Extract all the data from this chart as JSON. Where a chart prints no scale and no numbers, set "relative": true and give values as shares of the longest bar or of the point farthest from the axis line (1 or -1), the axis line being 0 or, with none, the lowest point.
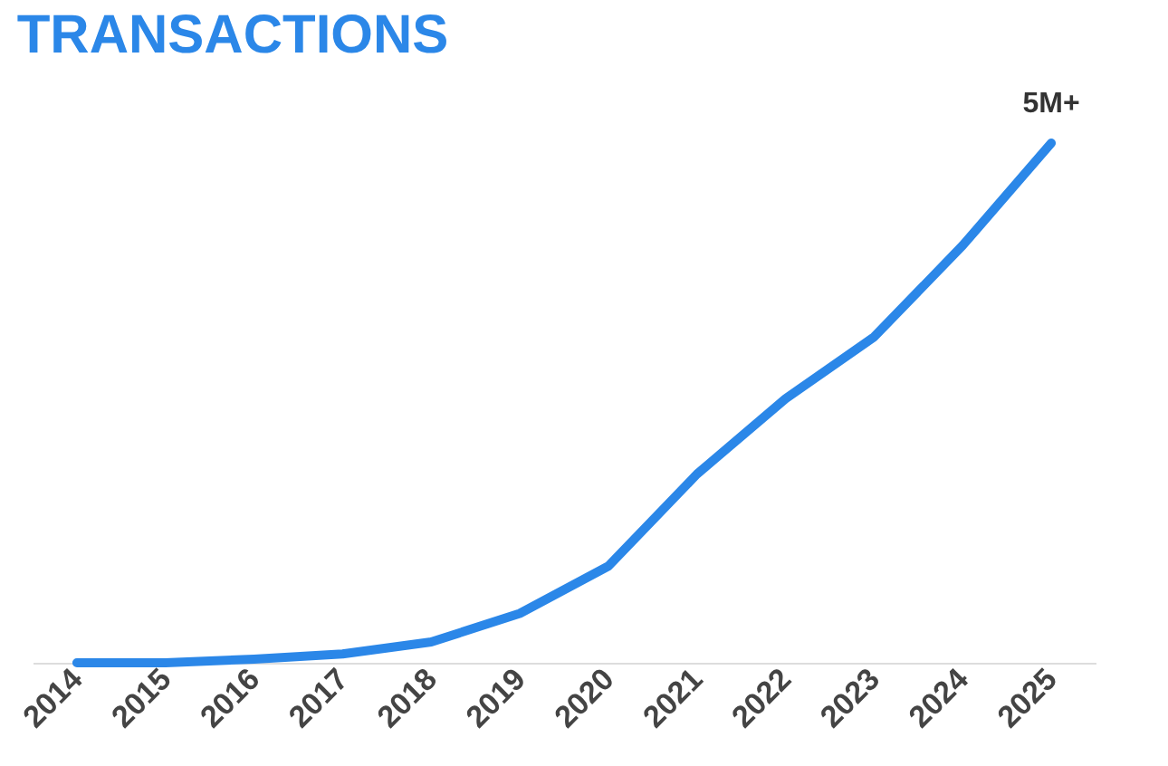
{
  "chart_data": {
    "type": "line",
    "title": "TRANSACTIONS",
    "relative": true,
    "categories": [
      "2014",
      "2015",
      "2016",
      "2017",
      "2018",
      "2019",
      "2020",
      "2021",
      "2022",
      "2023",
      "2024",
      "2025"
    ],
    "series": [
      {
        "color": "#2b87e8",
        "values": [
          0,
          0,
          0.007,
          0.017,
          0.04,
          0.095,
          0.186,
          0.363,
          0.508,
          0.627,
          0.803,
          1
        ]
      }
    ],
    "annotations": [
      {
        "text": "5M+",
        "x": "2025",
        "y": 1
      }
    ],
    "grid": false,
    "marker": "none",
    "line_style": "solid"
  }
}
